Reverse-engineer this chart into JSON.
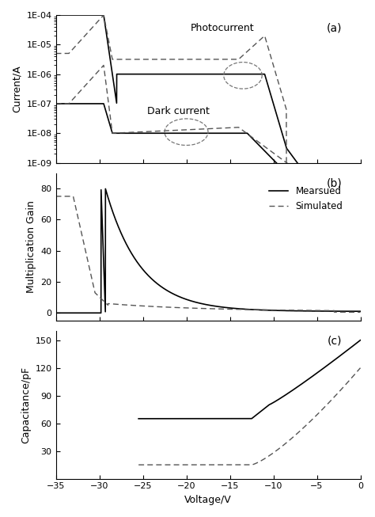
{
  "fig_width": 4.74,
  "fig_height": 6.53,
  "dpi": 100,
  "bg_color": "#ffffff",
  "panel_a": {
    "label": "(a)",
    "ylabel": "Current/A",
    "xlim": [
      -35,
      0
    ],
    "photocurrent_text": "Photocurrent",
    "darkcurrent_text": "Dark current",
    "ytick_labels": [
      "1E-09",
      "1E-08",
      "1E-07",
      "1E-06",
      "1E-05",
      "1E-04"
    ]
  },
  "panel_b": {
    "label": "(b)",
    "ylabel": "Multiplication Gain",
    "xlim": [
      -35,
      0
    ],
    "ylim": [
      -5,
      90
    ],
    "yticks": [
      0,
      20,
      40,
      60,
      80
    ],
    "legend_measured": "Mearsued",
    "legend_simulated": "Simulated"
  },
  "panel_c": {
    "label": "(c)",
    "ylabel": "Capacitance/pF",
    "xlabel": "Voltage/V",
    "xlim": [
      -35,
      0
    ],
    "ylim": [
      0,
      160
    ],
    "yticks": [
      30,
      60,
      90,
      120,
      150
    ],
    "xticks": [
      -35,
      -30,
      -25,
      -20,
      -15,
      -10,
      -5,
      0
    ]
  },
  "line_color_solid": "#000000",
  "line_color_dashed": "#555555"
}
